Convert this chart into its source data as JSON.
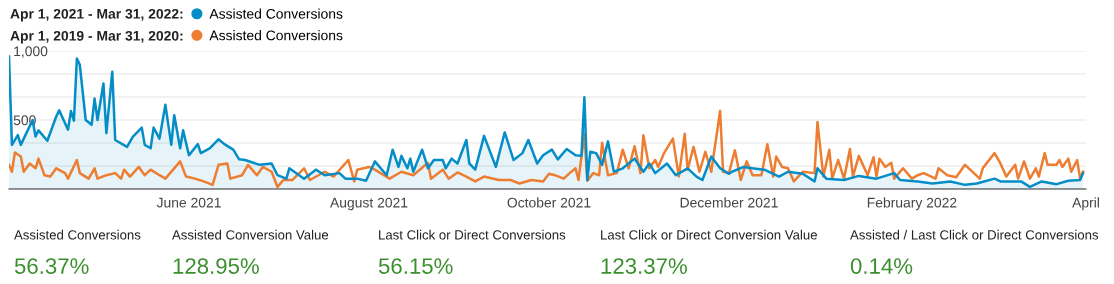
{
  "chart_data": [
    {
      "type": "line",
      "annotations": [
        "Apr 1, 2021 - Mar 31, 2022:",
        "Apr 1, 2019 - Mar 31, 2020:"
      ],
      "legend": "top left",
      "grid": "y",
      "xlim": [
        "2021-04-01",
        "2022-04-01"
      ],
      "xticks": [
        {
          "value": "2021-06-01",
          "label": "June 2021"
        },
        {
          "value": "2021-08-01",
          "label": "August 2021"
        },
        {
          "value": "2021-10-01",
          "label": "October 2021"
        },
        {
          "value": "2021-12-01",
          "label": "December 2021"
        },
        {
          "value": "2022-02-01",
          "label": "February 2022"
        },
        {
          "value": "2022-04-01",
          "label": "April"
        }
      ],
      "ylim": [
        0,
        1000
      ],
      "yticks": [
        {
          "value": 0,
          "label": null
        },
        {
          "value": 166.7,
          "label": null
        },
        {
          "value": 333.3,
          "label": null
        },
        {
          "value": 500,
          "label": "500"
        },
        {
          "value": 666.7,
          "label": null
        },
        {
          "value": 833.3,
          "label": null
        },
        {
          "value": 1000,
          "label": "1,000"
        }
      ],
      "series": [
        {
          "name": "Assisted Conversions",
          "type": "area",
          "color": "#058dc7",
          "x": [
            "2021-04-01",
            "2021-04-02",
            "2021-04-04",
            "2021-04-05",
            "2021-04-09",
            "2021-04-10",
            "2021-04-11",
            "2021-04-14",
            "2021-04-17",
            "2021-04-18",
            "2021-04-21",
            "2021-04-22",
            "2021-04-23",
            "2021-04-24",
            "2021-04-25",
            "2021-04-27",
            "2021-04-29",
            "2021-04-30",
            "2021-05-01",
            "2021-05-03",
            "2021-05-04",
            "2021-05-06",
            "2021-05-07",
            "2021-05-11",
            "2021-05-13",
            "2021-05-16",
            "2021-05-17",
            "2021-05-19",
            "2021-05-20",
            "2021-05-22",
            "2021-05-24",
            "2021-05-26",
            "2021-05-27",
            "2021-05-29",
            "2021-05-30",
            "2021-06-01",
            "2021-06-04",
            "2021-06-05",
            "2021-06-08",
            "2021-06-11",
            "2021-06-13",
            "2021-06-16",
            "2021-06-18",
            "2021-06-20",
            "2021-06-25",
            "2021-06-29",
            "2021-07-01",
            "2021-07-04",
            "2021-07-05",
            "2021-07-10",
            "2021-07-14",
            "2021-07-17",
            "2021-07-22",
            "2021-07-24",
            "2021-07-28",
            "2021-07-31",
            "2021-08-03",
            "2021-08-07",
            "2021-08-09",
            "2021-08-11",
            "2021-08-12",
            "2021-08-14",
            "2021-08-15",
            "2021-08-16",
            "2021-08-19",
            "2021-08-21",
            "2021-08-23",
            "2021-08-26",
            "2021-08-27",
            "2021-08-29",
            "2021-08-31",
            "2021-09-03",
            "2021-09-04",
            "2021-09-06",
            "2021-09-09",
            "2021-09-13",
            "2021-09-16",
            "2021-09-19",
            "2021-09-22",
            "2021-09-24",
            "2021-09-27",
            "2021-09-29",
            "2021-10-02",
            "2021-10-04",
            "2021-10-07",
            "2021-10-10",
            "2021-10-12",
            "2021-10-13",
            "2021-10-14",
            "2021-10-15",
            "2021-10-17",
            "2021-10-19",
            "2021-10-21",
            "2021-10-23",
            "2021-10-26",
            "2021-10-30",
            "2021-11-02",
            "2021-11-04",
            "2021-11-06",
            "2021-11-10",
            "2021-11-13",
            "2021-11-17",
            "2021-11-20",
            "2021-11-22",
            "2021-11-25",
            "2021-11-28",
            "2021-12-01",
            "2021-12-02",
            "2021-12-06",
            "2021-12-09",
            "2021-12-13",
            "2021-12-18",
            "2021-12-21",
            "2021-12-26",
            "2021-12-30",
            "2021-12-31",
            "2022-01-03",
            "2022-01-09",
            "2022-01-14",
            "2022-01-20",
            "2022-01-26",
            "2022-01-28",
            "2022-02-03",
            "2022-02-08",
            "2022-02-14",
            "2022-02-19",
            "2022-02-23",
            "2022-03-01",
            "2022-03-03",
            "2022-03-06",
            "2022-03-10",
            "2022-03-13",
            "2022-03-17",
            "2022-03-22",
            "2022-03-26",
            "2022-03-30",
            "2022-03-31"
          ],
          "values": [
            960,
            320,
            390,
            320,
            500,
            380,
            425,
            350,
            525,
            570,
            430,
            565,
            495,
            945,
            900,
            500,
            465,
            655,
            500,
            765,
            405,
            850,
            355,
            305,
            380,
            445,
            320,
            295,
            445,
            365,
            610,
            320,
            535,
            295,
            425,
            245,
            325,
            260,
            295,
            360,
            325,
            285,
            215,
            210,
            175,
            185,
            100,
            75,
            150,
            75,
            140,
            100,
            115,
            75,
            75,
            60,
            200,
            100,
            285,
            160,
            240,
            150,
            220,
            125,
            285,
            150,
            210,
            210,
            150,
            220,
            185,
            355,
            185,
            140,
            385,
            160,
            410,
            210,
            260,
            355,
            185,
            245,
            285,
            215,
            290,
            245,
            240,
            665,
            65,
            270,
            260,
            175,
            345,
            125,
            150,
            220,
            125,
            185,
            115,
            185,
            100,
            150,
            90,
            65,
            235,
            150,
            110,
            125,
            160,
            150,
            140,
            90,
            125,
            110,
            55,
            150,
            75,
            65,
            95,
            75,
            115,
            65,
            55,
            40,
            55,
            30,
            40,
            75,
            55,
            55,
            55,
            15,
            55,
            35,
            60,
            65,
            115
          ]
        },
        {
          "name": "Assisted Conversions",
          "type": "line",
          "color": "#ed7d31",
          "x": [
            "2021-04-01",
            "2021-04-02",
            "2021-04-03",
            "2021-04-05",
            "2021-04-06",
            "2021-04-08",
            "2021-04-10",
            "2021-04-11",
            "2021-04-13",
            "2021-04-15",
            "2021-04-17",
            "2021-04-20",
            "2021-04-21",
            "2021-04-24",
            "2021-04-25",
            "2021-04-28",
            "2021-04-30",
            "2021-05-01",
            "2021-05-04",
            "2021-05-07",
            "2021-05-09",
            "2021-05-10",
            "2021-05-12",
            "2021-05-15",
            "2021-05-17",
            "2021-05-19",
            "2021-05-22",
            "2021-05-24",
            "2021-05-28",
            "2021-05-29",
            "2021-05-31",
            "2021-06-03",
            "2021-06-06",
            "2021-06-09",
            "2021-06-11",
            "2021-06-14",
            "2021-06-15",
            "2021-06-19",
            "2021-06-21",
            "2021-06-24",
            "2021-06-26",
            "2021-06-29",
            "2021-07-01",
            "2021-07-03",
            "2021-07-06",
            "2021-07-10",
            "2021-07-12",
            "2021-07-17",
            "2021-07-20",
            "2021-07-25",
            "2021-07-27",
            "2021-07-28",
            "2021-08-01",
            "2021-08-03",
            "2021-08-08",
            "2021-08-12",
            "2021-08-16",
            "2021-08-21",
            "2021-08-22",
            "2021-08-26",
            "2021-08-28",
            "2021-08-31",
            "2021-09-03",
            "2021-09-06",
            "2021-09-09",
            "2021-09-14",
            "2021-09-18",
            "2021-09-21",
            "2021-09-25",
            "2021-09-29",
            "2021-10-01",
            "2021-10-03",
            "2021-10-06",
            "2021-10-08",
            "2021-10-10",
            "2021-10-11",
            "2021-10-13",
            "2021-10-14",
            "2021-10-16",
            "2021-10-18",
            "2021-10-19",
            "2021-10-21",
            "2021-10-24",
            "2021-10-26",
            "2021-10-28",
            "2021-10-30",
            "2021-11-01",
            "2021-11-02",
            "2021-11-04",
            "2021-11-06",
            "2021-11-07",
            "2021-11-09",
            "2021-11-12",
            "2021-11-14",
            "2021-11-16",
            "2021-11-17",
            "2021-11-19",
            "2021-11-21",
            "2021-11-23",
            "2021-11-25",
            "2021-11-28",
            "2021-11-29",
            "2021-12-01",
            "2021-12-03",
            "2021-12-05",
            "2021-12-07",
            "2021-12-09",
            "2021-12-12",
            "2021-12-14",
            "2021-12-16",
            "2021-12-17",
            "2021-12-19",
            "2021-12-21",
            "2021-12-23",
            "2021-12-26",
            "2021-12-30",
            "2021-12-31",
            "2022-01-02",
            "2022-01-04",
            "2022-01-05",
            "2022-01-07",
            "2022-01-09",
            "2022-01-11",
            "2022-01-12",
            "2022-01-14",
            "2022-01-17",
            "2022-01-19",
            "2022-01-20",
            "2022-01-21",
            "2022-01-23",
            "2022-01-25",
            "2022-01-26",
            "2022-01-29",
            "2022-02-01",
            "2022-02-03",
            "2022-02-05",
            "2022-02-09",
            "2022-02-10",
            "2022-02-13",
            "2022-02-16",
            "2022-02-19",
            "2022-02-22",
            "2022-02-24",
            "2022-02-25",
            "2022-03-01",
            "2022-03-03",
            "2022-03-05",
            "2022-03-08",
            "2022-03-09",
            "2022-03-11",
            "2022-03-13",
            "2022-03-15",
            "2022-03-16",
            "2022-03-18",
            "2022-03-19",
            "2022-03-22",
            "2022-03-23",
            "2022-03-24",
            "2022-03-26",
            "2022-03-27",
            "2022-03-29",
            "2022-03-30",
            "2022-03-31"
          ],
          "values": [
            175,
            125,
            265,
            235,
            125,
            185,
            150,
            220,
            100,
            90,
            150,
            115,
            75,
            210,
            115,
            75,
            150,
            75,
            100,
            115,
            75,
            140,
            90,
            160,
            100,
            140,
            100,
            75,
            175,
            200,
            90,
            75,
            55,
            30,
            175,
            185,
            75,
            100,
            175,
            100,
            160,
            125,
            15,
            65,
            65,
            150,
            65,
            125,
            90,
            210,
            55,
            140,
            160,
            140,
            75,
            125,
            100,
            190,
            75,
            140,
            75,
            120,
            90,
            55,
            90,
            65,
            65,
            40,
            65,
            55,
            110,
            100,
            75,
            115,
            150,
            65,
            400,
            60,
            115,
            100,
            335,
            100,
            115,
            285,
            150,
            310,
            115,
            390,
            150,
            210,
            160,
            260,
            365,
            90,
            400,
            140,
            305,
            125,
            270,
            125,
            565,
            125,
            115,
            280,
            65,
            200,
            100,
            100,
            325,
            90,
            235,
            160,
            150,
            55,
            125,
            115,
            485,
            90,
            285,
            75,
            210,
            75,
            290,
            90,
            240,
            100,
            230,
            90,
            220,
            160,
            190,
            75,
            150,
            75,
            100,
            115,
            75,
            150,
            100,
            85,
            175,
            115,
            75,
            150,
            260,
            185,
            90,
            175,
            75,
            200,
            75,
            150,
            90,
            260,
            175,
            175,
            210,
            160,
            220,
            125,
            210,
            75,
            125
          ]
        }
      ]
    },
    {
      "type": "other",
      "annotations": [
        "Assisted Conversions",
        "56.37%",
        "Assisted Conversion Value",
        "128.95%",
        "Last Click or Direct Conversions",
        "56.15%",
        "Last Click or Direct Conversion Value",
        "123.37%",
        "Assisted / Last Click or Direct Conversions",
        "0.14%"
      ]
    }
  ]
}
